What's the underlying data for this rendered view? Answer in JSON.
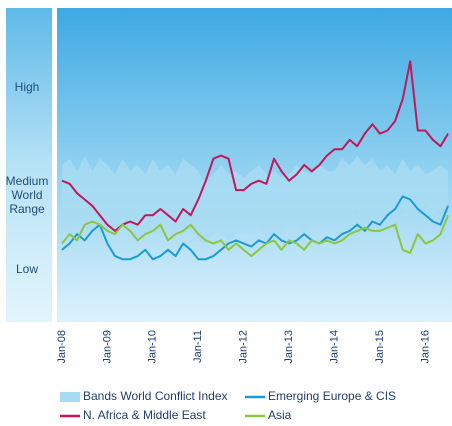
{
  "chart_data": {
    "type": "line",
    "side_labels": {
      "high": "High",
      "medium": [
        "Medium",
        "World",
        "Range"
      ],
      "low": "Low"
    },
    "categories": [
      "Jan-08",
      null,
      null,
      null,
      null,
      null,
      "Jan-09",
      null,
      null,
      null,
      null,
      null,
      "Jan-10",
      null,
      null,
      null,
      null,
      null,
      "Jan-11",
      null,
      null,
      null,
      null,
      null,
      "Jan-12",
      null,
      null,
      null,
      null,
      null,
      "Jan-13",
      null,
      null,
      null,
      null,
      null,
      "Jan-14",
      null,
      null,
      null,
      null,
      null,
      "Jan-15",
      null,
      null,
      null,
      null,
      null,
      "Jan-16",
      null,
      null,
      null
    ],
    "ylim": [
      0,
      100
    ],
    "series": [
      {
        "name": "Bands World Conflict Index",
        "color": "#a9dcf3",
        "band": true,
        "upper": [
          50,
          52,
          48,
          53,
          48,
          52,
          50,
          47,
          52,
          48,
          50,
          47,
          52,
          48,
          50,
          47,
          52,
          50,
          48,
          44,
          47,
          50,
          47,
          48,
          46,
          48,
          50,
          47,
          48,
          46,
          47,
          50,
          48,
          47,
          50,
          48,
          48,
          52,
          50,
          53,
          50,
          52,
          48,
          50,
          47,
          52,
          48,
          50,
          47,
          48,
          50,
          48
        ],
        "lower": [
          32,
          34,
          31,
          29,
          31,
          32,
          29,
          28,
          31,
          29,
          26,
          28,
          31,
          29,
          32,
          28,
          29,
          31,
          26,
          25,
          28,
          29,
          26,
          28,
          29,
          28,
          31,
          26,
          29,
          28,
          31,
          34,
          29,
          32,
          34,
          31,
          32,
          31,
          34,
          36,
          32,
          34,
          32,
          36,
          34,
          37,
          34,
          36,
          37,
          34,
          36,
          37
        ]
      },
      {
        "name": "Emerging Europe & CIS",
        "color": "#1b9bd7",
        "values": [
          23,
          25,
          28,
          26,
          29,
          31,
          25,
          21,
          20,
          20,
          21,
          23,
          20,
          21,
          23,
          21,
          25,
          23,
          20,
          20,
          21,
          23,
          25,
          26,
          25,
          24,
          26,
          25,
          28,
          26,
          25,
          26,
          28,
          26,
          25,
          27,
          26,
          28,
          29,
          31,
          29,
          32,
          31,
          34,
          36,
          40,
          39,
          36,
          34,
          32,
          31,
          37
        ]
      },
      {
        "name": "N. Africa & Middle East",
        "color": "#c0185a",
        "values": [
          45,
          44,
          41,
          39,
          37,
          34,
          31,
          29,
          31,
          32,
          31,
          34,
          34,
          36,
          34,
          32,
          36,
          34,
          39,
          45,
          52,
          53,
          52,
          42,
          42,
          44,
          45,
          44,
          52,
          48,
          45,
          47,
          50,
          48,
          50,
          53,
          55,
          55,
          58,
          56,
          60,
          63,
          60,
          61,
          64,
          71,
          83,
          61,
          61,
          58,
          56,
          60
        ]
      },
      {
        "name": "Asia",
        "color": "#8cc63f",
        "values": [
          25,
          28,
          26,
          31,
          32,
          31,
          29,
          28,
          31,
          29,
          26,
          28,
          29,
          31,
          26,
          28,
          29,
          31,
          28,
          26,
          25,
          26,
          23,
          25,
          23,
          21,
          23,
          25,
          26,
          23,
          26,
          25,
          23,
          26,
          25,
          26,
          25,
          26,
          28,
          29,
          30,
          29,
          29,
          30,
          31,
          23,
          22,
          28,
          25,
          26,
          28,
          34
        ]
      }
    ]
  }
}
